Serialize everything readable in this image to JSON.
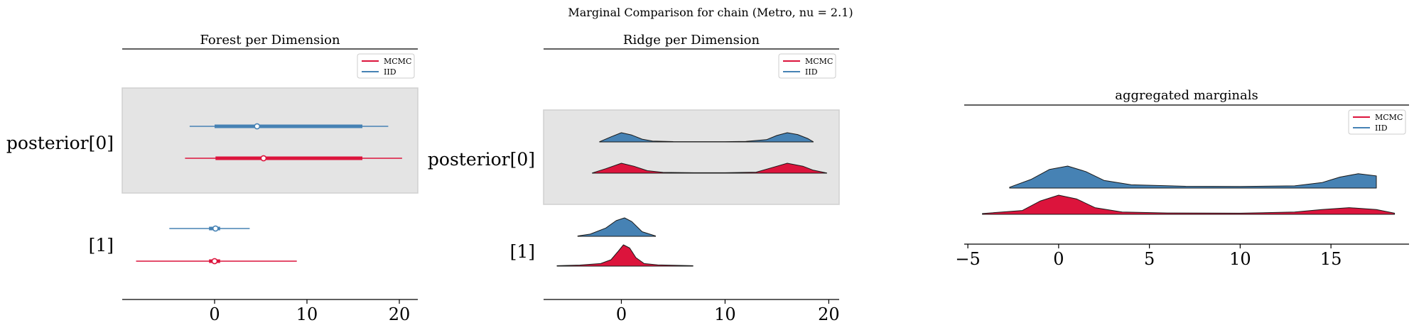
{
  "figure": {
    "suptitle": "Marginal Comparison for chain (Metro, nu = 2.1)"
  },
  "colors": {
    "mcmc": "#dc143c",
    "iid": "#4682b4",
    "band": "#e4e4e4",
    "band_edge": "#d0d0d0",
    "axis": "#000000"
  },
  "chart_data": [
    {
      "type": "forest",
      "title": "Forest per Dimension",
      "xlim": [
        -10,
        22
      ],
      "xticks": [
        0,
        10,
        20
      ],
      "rows": [
        {
          "label": "posterior[0]",
          "shaded": true,
          "series": [
            {
              "name": "IID",
              "color_key": "iid",
              "line": [
                -2.7,
                18.8
              ],
              "thick": [
                0.0,
                16.0
              ],
              "point": 4.6
            },
            {
              "name": "MCMC",
              "color_key": "mcmc",
              "line": [
                -3.2,
                20.3
              ],
              "thick": [
                0.1,
                16.0
              ],
              "point": 5.3
            }
          ]
        },
        {
          "label": "[1]",
          "shaded": false,
          "series": [
            {
              "name": "IID",
              "color_key": "iid",
              "line": [
                -4.9,
                3.8
              ],
              "thick": [
                -0.6,
                0.6
              ],
              "point": 0.1
            },
            {
              "name": "MCMC",
              "color_key": "mcmc",
              "line": [
                -8.5,
                8.9
              ],
              "thick": [
                -0.6,
                0.6
              ],
              "point": 0.0
            }
          ]
        }
      ],
      "legend": {
        "position": "upper right",
        "entries": [
          "MCMC",
          "IID"
        ]
      }
    },
    {
      "type": "ridge",
      "title": "Ridge per Dimension",
      "xlim": [
        -7.5,
        21
      ],
      "xticks": [
        0,
        10,
        20
      ],
      "rows": [
        {
          "label": "posterior[0]",
          "shaded": true,
          "series": [
            {
              "name": "IID",
              "color_key": "iid",
              "x": [
                -2.1,
                -1.0,
                0.0,
                1.0,
                2.0,
                3.0,
                5.0,
                7.0,
                10.0,
                12.0,
                14.0,
                15.0,
                16.0,
                17.0,
                18.0,
                18.5
              ],
              "y": [
                0.02,
                0.55,
                1.0,
                0.75,
                0.3,
                0.1,
                0.04,
                0.03,
                0.03,
                0.05,
                0.25,
                0.7,
                1.0,
                0.8,
                0.35,
                0.02
              ]
            },
            {
              "name": "MCMC",
              "color_key": "mcmc",
              "x": [
                -2.8,
                -1.5,
                0.0,
                1.2,
                2.5,
                4.0,
                7.0,
                10.0,
                13.0,
                14.5,
                16.0,
                17.5,
                18.5,
                19.8
              ],
              "y": [
                0.02,
                0.45,
                1.0,
                0.7,
                0.25,
                0.08,
                0.04,
                0.04,
                0.1,
                0.55,
                1.0,
                0.7,
                0.3,
                0.02
              ]
            }
          ]
        },
        {
          "label": "[1]",
          "shaded": false,
          "series": [
            {
              "name": "IID",
              "color_key": "iid",
              "x": [
                -4.2,
                -3.0,
                -1.5,
                -0.5,
                0.3,
                1.0,
                2.0,
                3.3
              ],
              "y": [
                0.02,
                0.12,
                0.45,
                0.85,
                1.0,
                0.8,
                0.25,
                0.02
              ]
            },
            {
              "name": "MCMC",
              "color_key": "mcmc",
              "x": [
                -6.2,
                -4.0,
                -2.0,
                -1.0,
                -0.3,
                0.2,
                0.8,
                1.4,
                2.2,
                3.5,
                5.0,
                6.9
              ],
              "y": [
                0.02,
                0.05,
                0.12,
                0.3,
                0.7,
                1.0,
                0.85,
                0.4,
                0.12,
                0.06,
                0.04,
                0.02
              ]
            }
          ]
        }
      ],
      "legend": {
        "position": "upper right",
        "entries": [
          "MCMC",
          "IID"
        ]
      }
    },
    {
      "type": "ridge",
      "title": "aggregated marginals",
      "xlim": [
        -5.2,
        19.3
      ],
      "xticks": [
        -5,
        0,
        5,
        10,
        15
      ],
      "xticklabels": [
        "−5",
        "0",
        "5",
        "10",
        "15"
      ],
      "rows": [
        {
          "label": "",
          "shaded": false,
          "series": [
            {
              "name": "IID",
              "color_key": "iid",
              "x": [
                -2.7,
                -1.5,
                -0.5,
                0.5,
                1.5,
                2.5,
                4.0,
                7.0,
                10.0,
                13.0,
                14.5,
                15.5,
                16.5,
                17.5
              ],
              "y": [
                0.04,
                0.4,
                0.85,
                1.0,
                0.75,
                0.35,
                0.15,
                0.08,
                0.07,
                0.1,
                0.25,
                0.5,
                0.65,
                0.55
              ]
            },
            {
              "name": "MCMC",
              "color_key": "mcmc",
              "x": [
                -4.2,
                -2.0,
                -1.0,
                0.0,
                1.0,
                2.0,
                3.5,
                6.0,
                10.0,
                13.0,
                14.5,
                16.0,
                17.5,
                18.5
              ],
              "y": [
                0.04,
                0.2,
                0.7,
                1.0,
                0.8,
                0.35,
                0.12,
                0.07,
                0.06,
                0.12,
                0.25,
                0.35,
                0.25,
                0.06
              ]
            }
          ]
        }
      ],
      "legend": {
        "position": "upper right",
        "entries": [
          "MCMC",
          "IID"
        ]
      }
    }
  ]
}
